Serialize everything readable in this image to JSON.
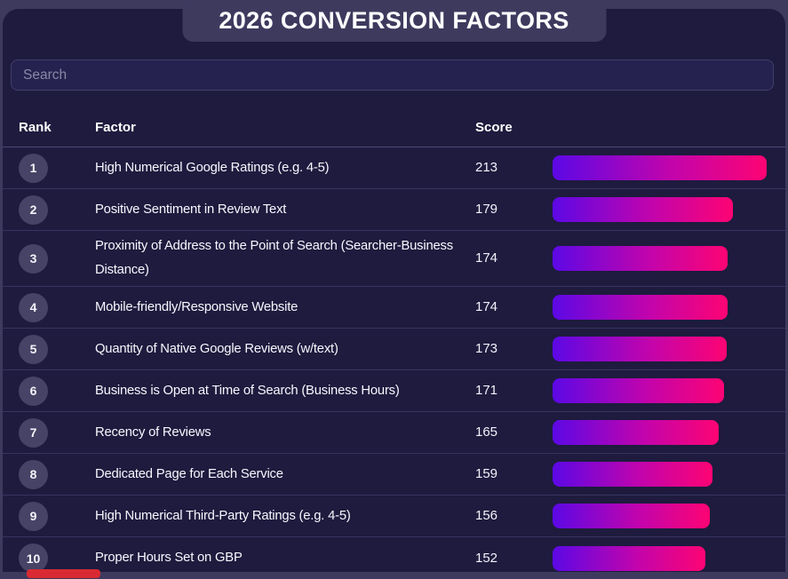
{
  "title": "2026 CONVERSION FACTORS",
  "search": {
    "placeholder": "Search",
    "value": ""
  },
  "table": {
    "headers": {
      "rank": "Rank",
      "factor": "Factor",
      "score": "Score"
    },
    "max_score": 213,
    "rows": [
      {
        "rank": "1",
        "factor": "High Numerical Google Ratings (e.g. 4-5)",
        "score": "213"
      },
      {
        "rank": "2",
        "factor": "Positive Sentiment in Review Text",
        "score": "179"
      },
      {
        "rank": "3",
        "factor": "Proximity of Address to the Point of Search (Searcher-Business Distance)",
        "score": "174"
      },
      {
        "rank": "4",
        "factor": "Mobile-friendly/Responsive Website",
        "score": "174"
      },
      {
        "rank": "5",
        "factor": "Quantity of Native Google Reviews (w/text)",
        "score": "173"
      },
      {
        "rank": "6",
        "factor": "Business is Open at Time of Search (Business Hours)",
        "score": "171"
      },
      {
        "rank": "7",
        "factor": "Recency of Reviews",
        "score": "165"
      },
      {
        "rank": "8",
        "factor": "Dedicated Page for Each Service",
        "score": "159"
      },
      {
        "rank": "9",
        "factor": "High Numerical Third-Party Ratings (e.g. 4-5)",
        "score": "156"
      },
      {
        "rank": "10",
        "factor": "Proper Hours Set on GBP",
        "score": "152"
      }
    ]
  },
  "chart_data": {
    "type": "bar",
    "title": "2026 CONVERSION FACTORS",
    "categories": [
      "High Numerical Google Ratings (e.g. 4-5)",
      "Positive Sentiment in Review Text",
      "Proximity of Address to the Point of Search (Searcher-Business Distance)",
      "Mobile-friendly/Responsive Website",
      "Quantity of Native Google Reviews (w/text)",
      "Business is Open at Time of Search (Business Hours)",
      "Recency of Reviews",
      "Dedicated Page for Each Service",
      "High Numerical Third-Party Ratings (e.g. 4-5)",
      "Proper Hours Set on GBP"
    ],
    "values": [
      213,
      179,
      174,
      174,
      173,
      171,
      165,
      159,
      156,
      152
    ],
    "xlabel": "Score",
    "ylabel": "Factor",
    "xlim": [
      0,
      213
    ],
    "orientation": "horizontal",
    "legend": false,
    "grid": false
  },
  "colors": {
    "page_background": "#3e3a5e",
    "panel_background": "#1e1b3e",
    "bar_gradient_start": "#5c08e6",
    "bar_gradient_mid": "#c204ac",
    "bar_gradient_end": "#fd0473",
    "bottom_accent_red": "#d92a33"
  }
}
